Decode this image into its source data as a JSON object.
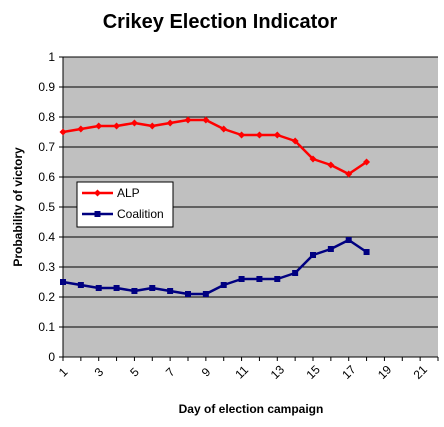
{
  "chart_data": {
    "type": "line",
    "title": "Crikey Election Indicator",
    "xlabel": "Day of election campaign",
    "ylabel": "Probability of victory",
    "xlim": [
      1,
      22
    ],
    "ylim": [
      0,
      1
    ],
    "x_ticks": [
      "1",
      "3",
      "5",
      "7",
      "9",
      "11",
      "13",
      "15",
      "17",
      "19",
      "21"
    ],
    "y_ticks": [
      "0",
      "0.1",
      "0.2",
      "0.3",
      "0.4",
      "0.5",
      "0.6",
      "0.7",
      "0.8",
      "0.9",
      "1"
    ],
    "grid": true,
    "legend_position": "left",
    "x": [
      1,
      2,
      3,
      4,
      5,
      6,
      7,
      8,
      9,
      10,
      11,
      12,
      13,
      14,
      15,
      16,
      17,
      18
    ],
    "series": [
      {
        "name": "ALP",
        "color": "#ff0000",
        "marker": "diamond",
        "values": [
          0.75,
          0.76,
          0.77,
          0.77,
          0.78,
          0.77,
          0.78,
          0.79,
          0.79,
          0.76,
          0.74,
          0.74,
          0.74,
          0.72,
          0.66,
          0.64,
          0.61,
          0.65
        ]
      },
      {
        "name": "Coalition",
        "color": "#000080",
        "marker": "square",
        "values": [
          0.25,
          0.24,
          0.23,
          0.23,
          0.22,
          0.23,
          0.22,
          0.21,
          0.21,
          0.24,
          0.26,
          0.26,
          0.26,
          0.28,
          0.34,
          0.36,
          0.39,
          0.35
        ]
      }
    ],
    "plot_background": "#c0c0c0"
  }
}
